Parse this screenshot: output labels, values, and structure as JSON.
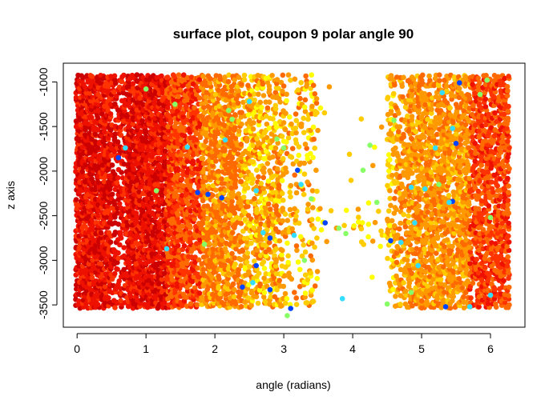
{
  "chart_data": {
    "type": "scatter",
    "title": "surface plot, coupon 9 polar angle 90",
    "xlabel": "angle (radians)",
    "ylabel": "z axis",
    "xlim": [
      -0.2,
      6.5
    ],
    "ylim": [
      -3750,
      -790
    ],
    "xticks": [
      0,
      1,
      2,
      3,
      4,
      5,
      6
    ],
    "xtick_labels": [
      "0",
      "1",
      "2",
      "3",
      "4",
      "5",
      "6"
    ],
    "yticks": [
      -1000,
      -1500,
      -2000,
      -2500,
      -3000,
      -3500
    ],
    "ytick_labels": [
      "-1000",
      "-1500",
      "-2000",
      "-2500",
      "-3000",
      "-3500"
    ],
    "grid": false,
    "legend": false,
    "colors": {
      "dark_red": "#cc0000",
      "red": "#ee1100",
      "red_orange": "#ff3300",
      "orange": "#ff6a00",
      "amber": "#ff9900",
      "gold": "#ffcc00",
      "yellow": "#ffff00",
      "light_green": "#88ff66",
      "cyan": "#33ddff",
      "blue": "#0044ff"
    },
    "outlier_points": [
      {
        "x": 1.0,
        "y": -1080,
        "color": "light_green"
      },
      {
        "x": 1.42,
        "y": -1250,
        "color": "light_green"
      },
      {
        "x": 2.2,
        "y": -1320,
        "color": "light_green"
      },
      {
        "x": 2.25,
        "y": -1420,
        "color": "light_green"
      },
      {
        "x": 2.5,
        "y": -1220,
        "color": "cyan"
      },
      {
        "x": 2.15,
        "y": -1650,
        "color": "cyan"
      },
      {
        "x": 1.6,
        "y": -1730,
        "color": "cyan"
      },
      {
        "x": 3.2,
        "y": -1990,
        "color": "blue"
      },
      {
        "x": 3.0,
        "y": -1740,
        "color": "light_green"
      },
      {
        "x": 2.9,
        "y": -1640,
        "color": "light_green"
      },
      {
        "x": 3.25,
        "y": -2150,
        "color": "cyan"
      },
      {
        "x": 3.4,
        "y": -2310,
        "color": "light_green"
      },
      {
        "x": 1.9,
        "y": -2260,
        "color": "blue"
      },
      {
        "x": 1.75,
        "y": -2240,
        "color": "blue"
      },
      {
        "x": 2.1,
        "y": -2300,
        "color": "blue"
      },
      {
        "x": 2.6,
        "y": -2220,
        "color": "cyan"
      },
      {
        "x": 3.6,
        "y": -2580,
        "color": "blue"
      },
      {
        "x": 3.8,
        "y": -2640,
        "color": "light_green"
      },
      {
        "x": 3.9,
        "y": -2700,
        "color": "light_green"
      },
      {
        "x": 4.15,
        "y": -1990,
        "color": "light_green"
      },
      {
        "x": 4.25,
        "y": -1710,
        "color": "light_green"
      },
      {
        "x": 4.35,
        "y": -2350,
        "color": "light_green"
      },
      {
        "x": 3.15,
        "y": -2720,
        "color": "cyan"
      },
      {
        "x": 2.8,
        "y": -2750,
        "color": "blue"
      },
      {
        "x": 2.7,
        "y": -2690,
        "color": "cyan"
      },
      {
        "x": 3.3,
        "y": -3000,
        "color": "light_green"
      },
      {
        "x": 2.6,
        "y": -3060,
        "color": "blue"
      },
      {
        "x": 2.4,
        "y": -3300,
        "color": "blue"
      },
      {
        "x": 2.55,
        "y": -3250,
        "color": "cyan"
      },
      {
        "x": 2.8,
        "y": -3330,
        "color": "blue"
      },
      {
        "x": 3.1,
        "y": -3540,
        "color": "blue"
      },
      {
        "x": 3.05,
        "y": -3620,
        "color": "light_green"
      },
      {
        "x": 3.85,
        "y": -3430,
        "color": "cyan"
      },
      {
        "x": 1.85,
        "y": -2820,
        "color": "light_green"
      },
      {
        "x": 1.3,
        "y": -2870,
        "color": "cyan"
      },
      {
        "x": 0.7,
        "y": -1740,
        "color": "cyan"
      },
      {
        "x": 1.15,
        "y": -2220,
        "color": "light_green"
      },
      {
        "x": 0.6,
        "y": -1850,
        "color": "blue"
      },
      {
        "x": 5.55,
        "y": -1010,
        "color": "blue"
      },
      {
        "x": 5.3,
        "y": -1120,
        "color": "cyan"
      },
      {
        "x": 5.2,
        "y": -1740,
        "color": "cyan"
      },
      {
        "x": 5.5,
        "y": -1690,
        "color": "blue"
      },
      {
        "x": 5.45,
        "y": -1520,
        "color": "cyan"
      },
      {
        "x": 4.85,
        "y": -2180,
        "color": "cyan"
      },
      {
        "x": 5.05,
        "y": -2200,
        "color": "cyan"
      },
      {
        "x": 5.25,
        "y": -2150,
        "color": "light_green"
      },
      {
        "x": 5.45,
        "y": -2340,
        "color": "blue"
      },
      {
        "x": 5.4,
        "y": -2350,
        "color": "cyan"
      },
      {
        "x": 4.9,
        "y": -2580,
        "color": "cyan"
      },
      {
        "x": 4.7,
        "y": -2800,
        "color": "cyan"
      },
      {
        "x": 4.55,
        "y": -2780,
        "color": "blue"
      },
      {
        "x": 4.95,
        "y": -3060,
        "color": "cyan"
      },
      {
        "x": 5.35,
        "y": -3520,
        "color": "blue"
      },
      {
        "x": 4.5,
        "y": -3490,
        "color": "light_green"
      },
      {
        "x": 5.7,
        "y": -3520,
        "color": "cyan"
      },
      {
        "x": 6.0,
        "y": -2520,
        "color": "light_green"
      },
      {
        "x": 5.85,
        "y": -1140,
        "color": "light_green"
      },
      {
        "x": 5.95,
        "y": -980,
        "color": "light_green"
      },
      {
        "x": 4.6,
        "y": -1430,
        "color": "light_green"
      },
      {
        "x": 6.0,
        "y": -3390,
        "color": "cyan"
      },
      {
        "x": 4.85,
        "y": -3360,
        "color": "light_green"
      }
    ]
  }
}
